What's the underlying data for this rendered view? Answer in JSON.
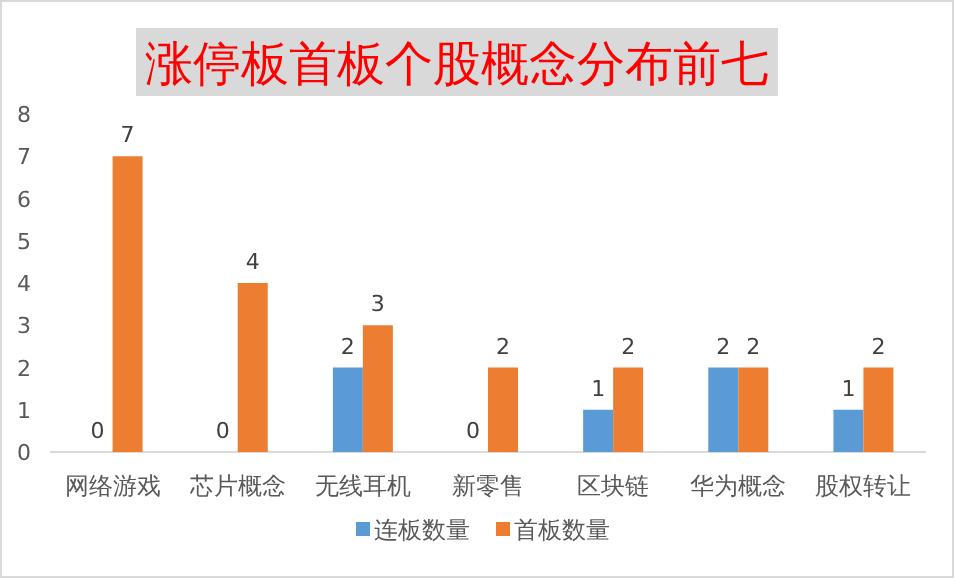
{
  "chart_data": {
    "type": "bar",
    "title": "涨停板首板个股概念分布前七",
    "categories": [
      "网络游戏",
      "芯片概念",
      "无线耳机",
      "新零售",
      "区块链",
      "华为概念",
      "股权转让"
    ],
    "series": [
      {
        "name": "连板数量",
        "color": "#5b9bd5",
        "values": [
          0,
          0,
          2,
          0,
          1,
          2,
          1
        ]
      },
      {
        "name": "首板数量",
        "color": "#ed7d31",
        "values": [
          7,
          4,
          3,
          2,
          2,
          2,
          2
        ]
      }
    ],
    "ylim": [
      0,
      8
    ],
    "yticks": [
      0,
      1,
      2,
      3,
      4,
      5,
      6,
      7,
      8
    ],
    "grid": false,
    "legend": "bottom",
    "data_labels": true
  }
}
